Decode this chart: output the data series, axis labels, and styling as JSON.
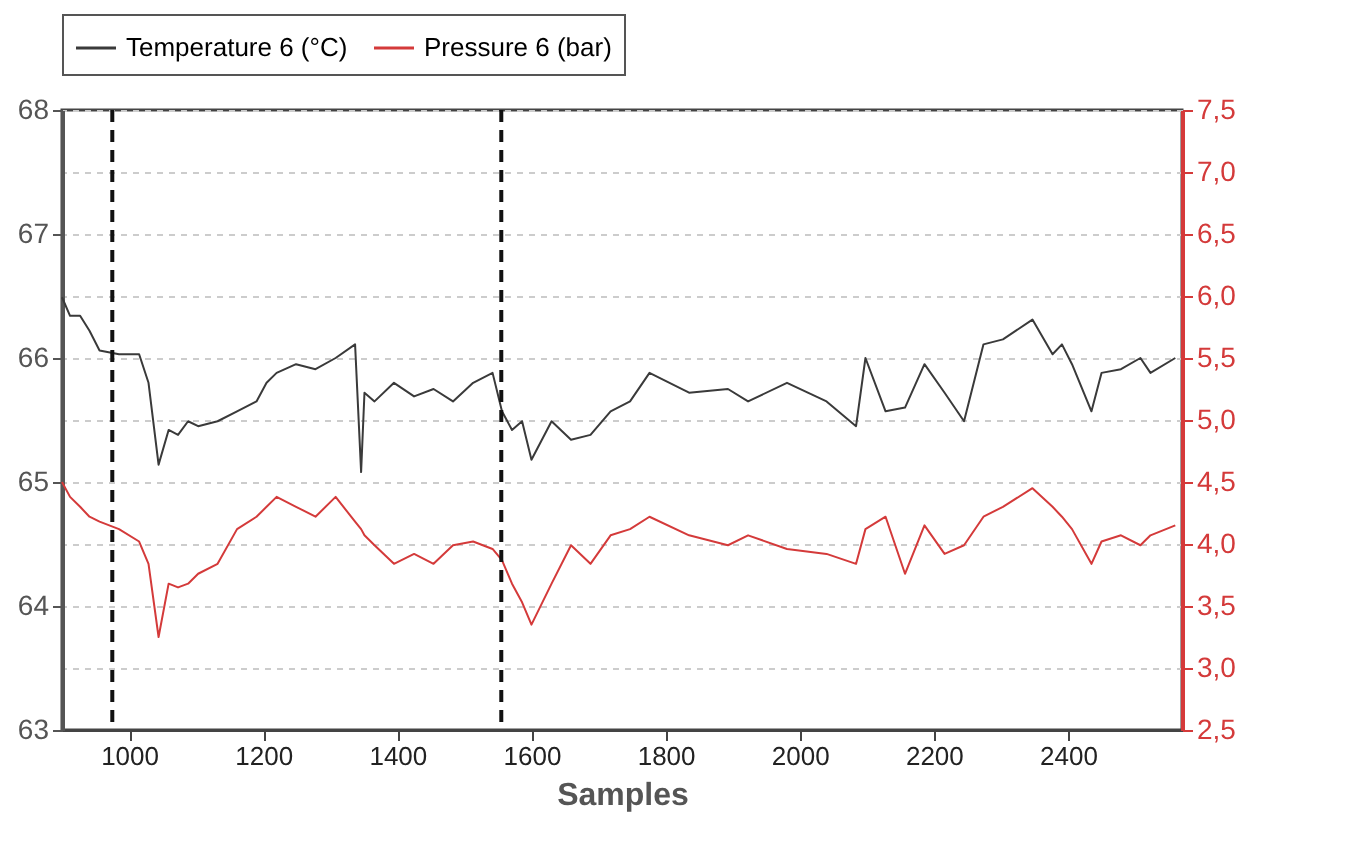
{
  "chart_data": {
    "type": "line",
    "xlabel": "Samples",
    "legend": "top",
    "grid": "y2",
    "line_style": "solid",
    "marker": "none",
    "x": [
      900,
      912,
      927,
      941,
      956,
      985,
      1015,
      1029,
      1044,
      1059,
      1073,
      1088,
      1103,
      1132,
      1161,
      1190,
      1205,
      1220,
      1249,
      1278,
      1308,
      1337,
      1346,
      1351,
      1366,
      1395,
      1425,
      1454,
      1483,
      1513,
      1542,
      1556,
      1571,
      1586,
      1600,
      1630,
      1659,
      1688,
      1718,
      1747,
      1776,
      1835,
      1893,
      1923,
      1981,
      2040,
      2084,
      2098,
      2128,
      2157,
      2186,
      2216,
      2245,
      2274,
      2303,
      2347,
      2377,
      2391,
      2406,
      2435,
      2450,
      2479,
      2508,
      2523,
      2560
    ],
    "series": [
      {
        "name": "Temperature 6 (°C)",
        "color": "#3a3a3a",
        "values": [
          66.49,
          66.34,
          66.34,
          66.22,
          66.06,
          66.03,
          66.03,
          65.8,
          65.14,
          65.42,
          65.38,
          65.49,
          65.45,
          65.49,
          65.57,
          65.65,
          65.8,
          65.88,
          65.95,
          65.91,
          66.0,
          66.11,
          65.08,
          65.72,
          65.65,
          65.8,
          65.69,
          65.75,
          65.65,
          65.8,
          65.88,
          65.57,
          65.42,
          65.49,
          65.18,
          65.49,
          65.34,
          65.38,
          65.57,
          65.65,
          65.88,
          65.72,
          65.75,
          65.65,
          65.8,
          65.65,
          65.45,
          66.0,
          65.57,
          65.6,
          65.95,
          65.72,
          65.49,
          66.11,
          66.15,
          66.31,
          66.03,
          66.11,
          65.95,
          65.57,
          65.88,
          65.91,
          66.0,
          65.88,
          66.0
        ]
      },
      {
        "name": "Pressure 6 (bar)",
        "color": "#d43a3a",
        "axis": "y2",
        "values": [
          4.5,
          4.38,
          4.3,
          4.22,
          4.18,
          4.12,
          4.02,
          3.84,
          3.25,
          3.68,
          3.65,
          3.68,
          3.76,
          3.84,
          4.12,
          4.22,
          4.3,
          4.38,
          4.3,
          4.22,
          4.38,
          4.18,
          4.12,
          4.07,
          3.99,
          3.84,
          3.92,
          3.84,
          3.99,
          4.02,
          3.96,
          3.87,
          3.68,
          3.53,
          3.35,
          3.68,
          3.99,
          3.84,
          4.07,
          4.12,
          4.22,
          4.07,
          3.99,
          4.07,
          3.96,
          3.92,
          3.84,
          4.12,
          4.22,
          3.76,
          4.15,
          3.92,
          3.99,
          4.22,
          4.3,
          4.45,
          4.3,
          4.22,
          4.12,
          3.84,
          4.02,
          4.07,
          3.99,
          4.07,
          4.15
        ]
      }
    ],
    "xlim": [
      900,
      2570
    ],
    "xticks": [
      1000,
      1200,
      1400,
      1600,
      1800,
      2000,
      2200,
      2400
    ],
    "ylim": [
      63,
      68
    ],
    "yticks": [
      63,
      64,
      65,
      66,
      67,
      68
    ],
    "y2lim": [
      2.5,
      7.5
    ],
    "y2ticks": [
      {
        "value": 2.5,
        "label": "2,5"
      },
      {
        "value": 3.0,
        "label": "3,0"
      },
      {
        "value": 3.5,
        "label": "3,5"
      },
      {
        "value": 4.0,
        "label": "4,0"
      },
      {
        "value": 4.5,
        "label": "4,5"
      },
      {
        "value": 5.0,
        "label": "5,0"
      },
      {
        "value": 5.5,
        "label": "5,5"
      },
      {
        "value": 6.0,
        "label": "6,0"
      },
      {
        "value": 6.5,
        "label": "6,5"
      },
      {
        "value": 7.0,
        "label": "7,0"
      },
      {
        "value": 7.5,
        "label": "7,5"
      }
    ],
    "ref_lines": [
      {
        "axis": "x",
        "value": 975,
        "color": "#111111",
        "line_style": "dashed"
      },
      {
        "axis": "x",
        "value": 1555,
        "color": "#111111",
        "line_style": "dashed"
      }
    ]
  }
}
